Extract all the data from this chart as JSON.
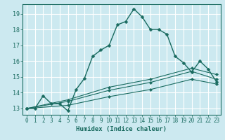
{
  "xlabel": "Humidex (Indice chaleur)",
  "xlim": [
    -0.5,
    23.5
  ],
  "ylim": [
    12.6,
    19.6
  ],
  "yticks": [
    13,
    14,
    15,
    16,
    17,
    18,
    19
  ],
  "xticks": [
    0,
    1,
    2,
    3,
    4,
    5,
    6,
    7,
    8,
    9,
    10,
    11,
    12,
    13,
    14,
    15,
    16,
    17,
    18,
    19,
    20,
    21,
    22,
    23
  ],
  "bg_color": "#cce9f0",
  "grid_color": "#ffffff",
  "line_color": "#1a6b60",
  "lines": [
    {
      "x": [
        0,
        1,
        2,
        3,
        4,
        5,
        6,
        7,
        8,
        9,
        10,
        11,
        12,
        13,
        14,
        15,
        16,
        17,
        18,
        19,
        20,
        21,
        22,
        23
      ],
      "y": [
        13.0,
        13.0,
        13.8,
        13.3,
        13.3,
        12.85,
        14.2,
        14.9,
        16.3,
        16.7,
        17.0,
        18.3,
        18.5,
        19.3,
        18.8,
        18.0,
        18.0,
        17.7,
        16.3,
        15.9,
        15.3,
        16.0,
        15.5,
        14.7
      ],
      "marker": true
    },
    {
      "x": [
        0,
        5,
        10,
        15,
        20,
        23
      ],
      "y": [
        13.0,
        13.55,
        14.35,
        14.85,
        15.55,
        15.15
      ],
      "marker": true
    },
    {
      "x": [
        0,
        5,
        10,
        15,
        20,
        23
      ],
      "y": [
        13.0,
        13.45,
        14.15,
        14.65,
        15.35,
        14.85
      ],
      "marker": true
    },
    {
      "x": [
        0,
        5,
        10,
        15,
        20,
        23
      ],
      "y": [
        13.0,
        13.2,
        13.75,
        14.2,
        14.85,
        14.55
      ],
      "marker": true
    }
  ]
}
